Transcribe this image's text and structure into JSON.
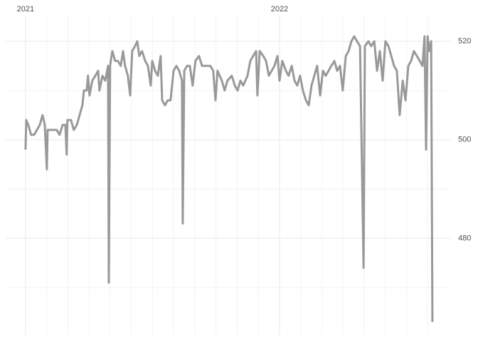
{
  "chart_data": {
    "type": "line",
    "x": [
      2021.0,
      2021.003,
      2021.011,
      2021.022,
      2021.034,
      2021.045,
      2021.056,
      2021.067,
      2021.076,
      2021.084,
      2021.087,
      2021.095,
      2021.123,
      2021.134,
      2021.146,
      2021.157,
      2021.162,
      2021.165,
      2021.179,
      2021.19,
      2021.202,
      2021.213,
      2021.224,
      2021.23,
      2021.241,
      2021.246,
      2021.252,
      2021.263,
      2021.275,
      2021.286,
      2021.291,
      2021.303,
      2021.314,
      2021.325,
      2021.328,
      2021.333,
      2021.342,
      2021.353,
      2021.364,
      2021.375,
      2021.384,
      2021.392,
      2021.403,
      2021.412,
      2021.42,
      2021.431,
      2021.44,
      2021.448,
      2021.459,
      2021.471,
      2021.482,
      2021.493,
      2021.499,
      2021.51,
      2021.521,
      2021.532,
      2021.538,
      2021.549,
      2021.56,
      2021.571,
      2021.583,
      2021.594,
      2021.605,
      2021.616,
      2021.619,
      2021.625,
      2021.636,
      2021.647,
      2021.658,
      2021.669,
      2021.683,
      2021.695,
      2021.706,
      2021.717,
      2021.728,
      2021.739,
      2021.748,
      2021.756,
      2021.773,
      2021.784,
      2021.795,
      2021.812,
      2021.824,
      2021.835,
      2021.846,
      2021.857,
      2021.874,
      2021.885,
      2021.896,
      2021.908,
      2021.913,
      2021.922,
      2021.936,
      2021.947,
      2021.958,
      2021.969,
      2021.98,
      2021.992,
      2022.0,
      2022.011,
      2022.025,
      2022.036,
      2022.048,
      2022.059,
      2022.07,
      2022.081,
      2022.092,
      2022.104,
      2022.115,
      2022.126,
      2022.137,
      2022.148,
      2022.16,
      2022.171,
      2022.182,
      2022.193,
      2022.204,
      2022.216,
      2022.227,
      2022.238,
      2022.249,
      2022.261,
      2022.272,
      2022.283,
      2022.294,
      2022.305,
      2022.317,
      2022.331,
      2022.336,
      2022.35,
      2022.361,
      2022.373,
      2022.384,
      2022.395,
      2022.406,
      2022.417,
      2022.429,
      2022.44,
      2022.451,
      2022.462,
      2022.473,
      2022.485,
      2022.496,
      2022.507,
      2022.518,
      2022.529,
      2022.541,
      2022.552,
      2022.563,
      2022.571,
      2022.577,
      2022.583,
      2022.591,
      2022.597,
      2022.602
    ],
    "values": [
      498,
      504,
      503,
      501,
      501,
      502,
      503,
      505,
      503,
      494,
      502,
      502,
      502,
      501,
      503,
      503,
      497,
      504,
      504,
      502,
      503,
      505,
      507,
      510,
      510,
      513,
      509,
      512,
      513,
      514,
      510,
      513,
      512,
      515,
      471,
      515,
      518,
      516,
      516,
      515,
      518,
      515,
      513,
      509,
      518,
      519,
      520,
      517,
      518,
      516,
      515,
      511,
      516,
      514,
      513,
      517,
      508,
      507,
      508,
      508,
      514,
      515,
      514,
      512,
      483,
      514,
      515,
      515,
      511,
      516,
      517,
      515,
      515,
      515,
      515,
      514,
      508,
      514,
      512,
      510,
      512,
      513,
      511,
      510,
      512,
      511,
      513,
      516,
      517,
      518,
      509,
      518,
      517,
      516,
      513,
      514,
      515,
      517,
      512,
      516,
      514,
      513,
      515,
      512,
      511,
      513,
      510,
      508,
      507,
      511,
      513,
      515,
      509,
      514,
      513,
      514,
      515,
      516,
      514,
      515,
      510,
      517,
      518,
      520,
      521,
      520,
      519,
      474,
      519,
      520,
      519,
      520,
      514,
      518,
      512,
      520,
      519,
      517,
      515,
      514,
      505,
      512,
      508,
      515,
      516,
      518,
      517,
      516,
      515,
      521,
      498,
      521,
      518,
      520,
      463
    ],
    "color": "#999999",
    "xlim": [
      2020.922,
      2022.675
    ],
    "xticks": [
      2021,
      2022
    ],
    "x_minor_ticks": [
      2021.083,
      2021.167,
      2021.25,
      2021.333,
      2021.417,
      2021.5,
      2021.583,
      2021.667,
      2021.75,
      2021.833,
      2021.917,
      2022.083,
      2022.167,
      2022.25,
      2022.333,
      2022.417,
      2022.5,
      2022.583
    ],
    "ylim": [
      460.3,
      525.2
    ],
    "yticks": [
      480,
      500,
      520
    ],
    "y_minor_ticks": [
      470,
      490,
      510
    ],
    "grid": true
  }
}
